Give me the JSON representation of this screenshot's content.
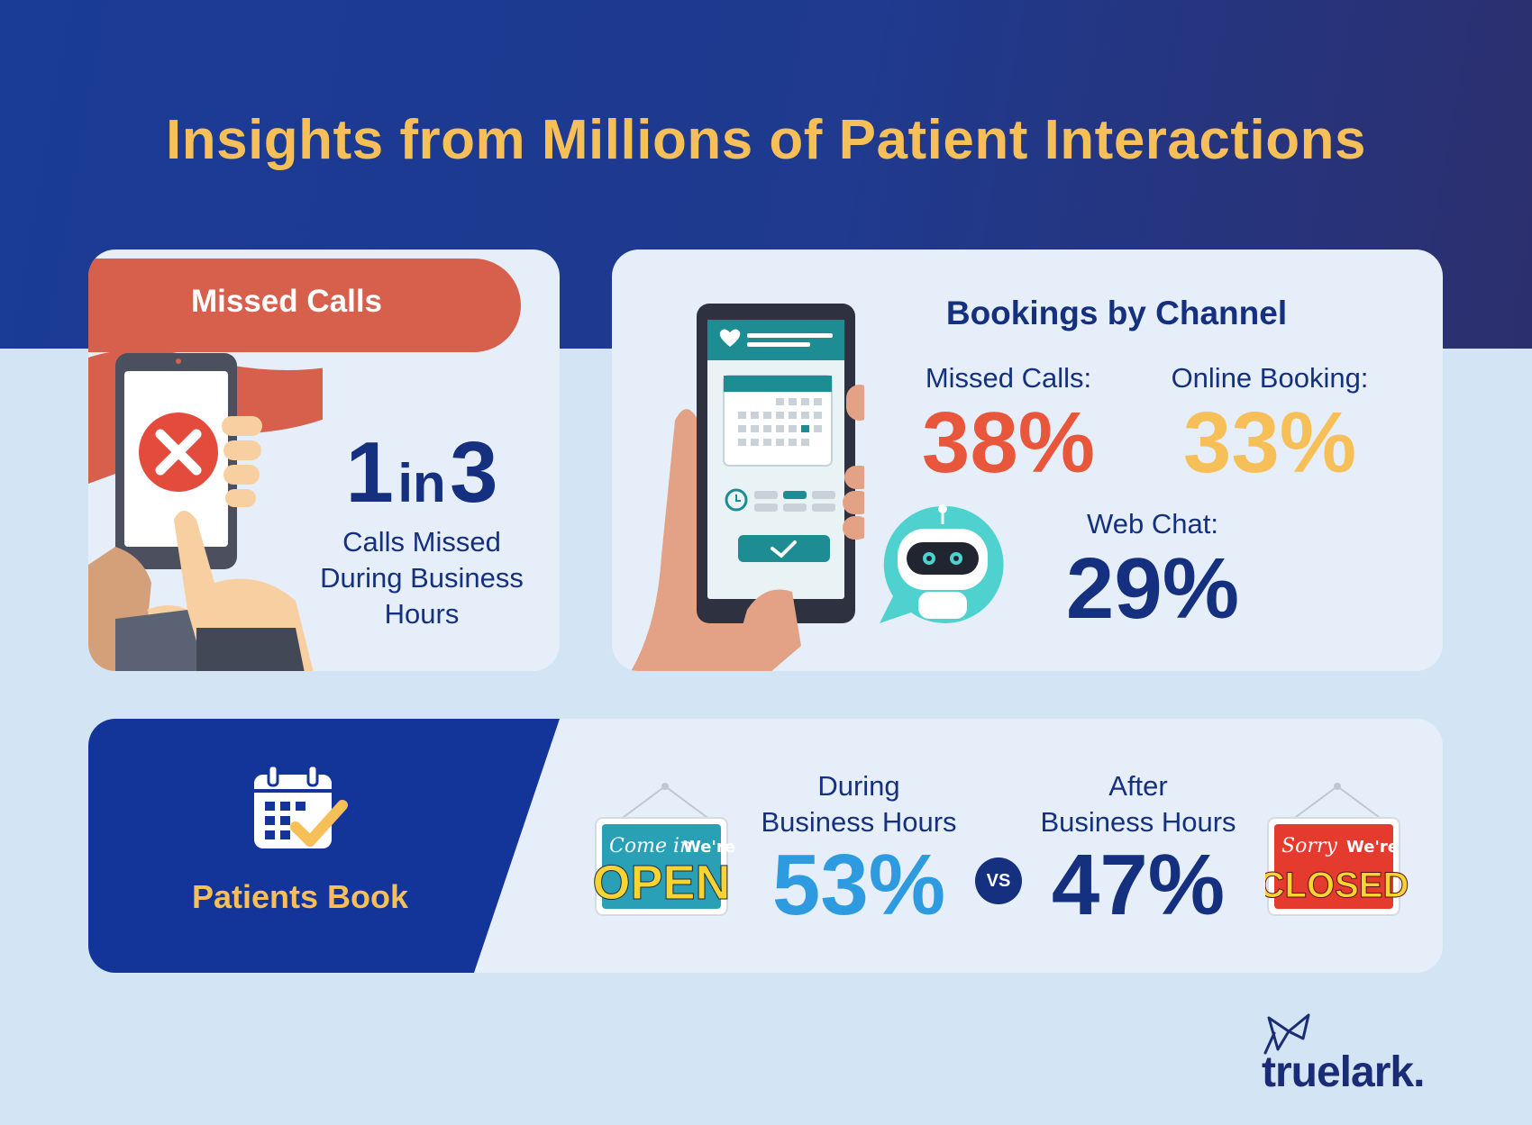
{
  "page": {
    "title": "Insights from Millions of Patient Interactions"
  },
  "missed_calls": {
    "header": "Missed Calls",
    "stat_num": "1",
    "stat_in": "in",
    "stat_den": "3",
    "desc_lines": [
      "Calls Missed",
      "During Business",
      "Hours"
    ]
  },
  "bookings": {
    "title": "Bookings by Channel",
    "channels": [
      {
        "label": "Missed Calls:",
        "value": "38%",
        "color": "#e8573b"
      },
      {
        "label": "Online Booking:",
        "value": "33%",
        "color": "#f6bf58"
      },
      {
        "label": "Web Chat:",
        "value": "29%",
        "color": "#14307f"
      }
    ]
  },
  "patients_book": {
    "label": "Patients Book",
    "during_lines": [
      "During",
      "Business Hours"
    ],
    "during_value": "53%",
    "during_color": "#2e9be0",
    "vs": "VS",
    "after_lines": [
      "After",
      "Business Hours"
    ],
    "after_value": "47%",
    "after_color": "#14307f",
    "open_sign": {
      "script": "Come in",
      "small": "We're",
      "big": "OPEN"
    },
    "closed_sign": {
      "script": "Sorry",
      "small": "We're",
      "big": "CLOSED"
    }
  },
  "brand": {
    "name": "truelark."
  },
  "icons": [
    "phone-x-icon",
    "phone-calendar-icon",
    "chatbot-icon",
    "calendar-check-icon",
    "truelark-logo-icon"
  ]
}
